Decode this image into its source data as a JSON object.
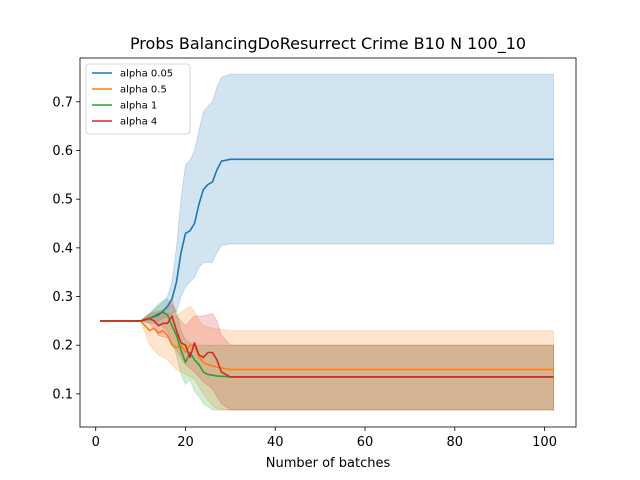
{
  "chart_data": {
    "type": "line",
    "title": "Probs BalancingDoResurrect Crime B10 N 100_10",
    "xlabel": "Number of batches",
    "ylabel": "",
    "xlim": [
      -3.5,
      107
    ],
    "ylim": [
      0.032,
      0.79
    ],
    "x_ticks": [
      0,
      20,
      40,
      60,
      80,
      100
    ],
    "y_ticks": [
      0.1,
      0.2,
      0.3,
      0.4,
      0.5,
      0.6,
      0.7
    ],
    "grid": false,
    "legend_position": "top-left",
    "series": [
      {
        "name": "alpha 0.05",
        "color": "#1f77b4",
        "points": [
          [
            1,
            0.25
          ],
          [
            10,
            0.25
          ],
          [
            12,
            0.255
          ],
          [
            14,
            0.262
          ],
          [
            15,
            0.27
          ],
          [
            16,
            0.28
          ],
          [
            17,
            0.295
          ],
          [
            18,
            0.33
          ],
          [
            19,
            0.39
          ],
          [
            20,
            0.43
          ],
          [
            21,
            0.435
          ],
          [
            22,
            0.45
          ],
          [
            23,
            0.49
          ],
          [
            24,
            0.52
          ],
          [
            25,
            0.53
          ],
          [
            26,
            0.535
          ],
          [
            27,
            0.56
          ],
          [
            28,
            0.578
          ],
          [
            30,
            0.582
          ],
          [
            102,
            0.582
          ]
        ],
        "band_upper": [
          [
            1,
            0.25
          ],
          [
            10,
            0.25
          ],
          [
            12,
            0.265
          ],
          [
            14,
            0.28
          ],
          [
            16,
            0.3
          ],
          [
            17,
            0.33
          ],
          [
            18,
            0.4
          ],
          [
            19,
            0.5
          ],
          [
            20,
            0.57
          ],
          [
            21,
            0.58
          ],
          [
            22,
            0.6
          ],
          [
            23,
            0.64
          ],
          [
            24,
            0.68
          ],
          [
            25,
            0.69
          ],
          [
            26,
            0.7
          ],
          [
            27,
            0.73
          ],
          [
            28,
            0.75
          ],
          [
            30,
            0.757
          ],
          [
            102,
            0.757
          ]
        ],
        "band_lower": [
          [
            1,
            0.25
          ],
          [
            10,
            0.25
          ],
          [
            12,
            0.25
          ],
          [
            14,
            0.25
          ],
          [
            16,
            0.26
          ],
          [
            17,
            0.265
          ],
          [
            18,
            0.27
          ],
          [
            19,
            0.3
          ],
          [
            20,
            0.32
          ],
          [
            21,
            0.33
          ],
          [
            22,
            0.34
          ],
          [
            23,
            0.36
          ],
          [
            24,
            0.37
          ],
          [
            25,
            0.37
          ],
          [
            26,
            0.37
          ],
          [
            27,
            0.39
          ],
          [
            28,
            0.405
          ],
          [
            30,
            0.408
          ],
          [
            102,
            0.408
          ]
        ]
      },
      {
        "name": "alpha 0.5",
        "color": "#ff7f0e",
        "points": [
          [
            1,
            0.25
          ],
          [
            10,
            0.25
          ],
          [
            11,
            0.24
          ],
          [
            12,
            0.23
          ],
          [
            13,
            0.235
          ],
          [
            14,
            0.225
          ],
          [
            15,
            0.23
          ],
          [
            16,
            0.22
          ],
          [
            17,
            0.2
          ],
          [
            18,
            0.195
          ],
          [
            19,
            0.2
          ],
          [
            20,
            0.185
          ],
          [
            21,
            0.2
          ],
          [
            22,
            0.2
          ],
          [
            23,
            0.175
          ],
          [
            24,
            0.165
          ],
          [
            25,
            0.16
          ],
          [
            27,
            0.155
          ],
          [
            30,
            0.15
          ],
          [
            102,
            0.15
          ]
        ],
        "band_upper": [
          [
            1,
            0.25
          ],
          [
            10,
            0.25
          ],
          [
            12,
            0.26
          ],
          [
            14,
            0.265
          ],
          [
            16,
            0.265
          ],
          [
            18,
            0.26
          ],
          [
            20,
            0.275
          ],
          [
            21,
            0.28
          ],
          [
            22,
            0.27
          ],
          [
            23,
            0.25
          ],
          [
            24,
            0.24
          ],
          [
            26,
            0.235
          ],
          [
            30,
            0.23
          ],
          [
            102,
            0.23
          ]
        ],
        "band_lower": [
          [
            1,
            0.25
          ],
          [
            10,
            0.25
          ],
          [
            12,
            0.2
          ],
          [
            14,
            0.18
          ],
          [
            16,
            0.17
          ],
          [
            18,
            0.15
          ],
          [
            20,
            0.14
          ],
          [
            22,
            0.13
          ],
          [
            24,
            0.1
          ],
          [
            26,
            0.075
          ],
          [
            28,
            0.067
          ],
          [
            30,
            0.067
          ],
          [
            102,
            0.067
          ]
        ]
      },
      {
        "name": "alpha 1",
        "color": "#2ca02c",
        "points": [
          [
            1,
            0.25
          ],
          [
            10,
            0.25
          ],
          [
            12,
            0.255
          ],
          [
            14,
            0.265
          ],
          [
            15,
            0.268
          ],
          [
            16,
            0.262
          ],
          [
            17,
            0.24
          ],
          [
            18,
            0.22
          ],
          [
            19,
            0.19
          ],
          [
            20,
            0.165
          ],
          [
            21,
            0.185
          ],
          [
            22,
            0.17
          ],
          [
            23,
            0.16
          ],
          [
            24,
            0.145
          ],
          [
            25,
            0.14
          ],
          [
            27,
            0.137
          ],
          [
            30,
            0.135
          ],
          [
            102,
            0.135
          ]
        ],
        "band_upper": [
          [
            1,
            0.25
          ],
          [
            10,
            0.25
          ],
          [
            12,
            0.265
          ],
          [
            14,
            0.285
          ],
          [
            16,
            0.295
          ],
          [
            18,
            0.27
          ],
          [
            19,
            0.23
          ],
          [
            20,
            0.21
          ],
          [
            22,
            0.2
          ],
          [
            24,
            0.2
          ],
          [
            26,
            0.2
          ],
          [
            102,
            0.2
          ]
        ],
        "band_lower": [
          [
            1,
            0.25
          ],
          [
            10,
            0.25
          ],
          [
            12,
            0.245
          ],
          [
            14,
            0.245
          ],
          [
            16,
            0.23
          ],
          [
            18,
            0.18
          ],
          [
            19,
            0.14
          ],
          [
            20,
            0.12
          ],
          [
            21,
            0.13
          ],
          [
            22,
            0.105
          ],
          [
            23,
            0.095
          ],
          [
            24,
            0.08
          ],
          [
            26,
            0.067
          ],
          [
            102,
            0.067
          ]
        ]
      },
      {
        "name": "alpha 4",
        "color": "#d62728",
        "points": [
          [
            1,
            0.25
          ],
          [
            10,
            0.25
          ],
          [
            12,
            0.255
          ],
          [
            13,
            0.25
          ],
          [
            14,
            0.24
          ],
          [
            15,
            0.245
          ],
          [
            16,
            0.245
          ],
          [
            17,
            0.26
          ],
          [
            18,
            0.23
          ],
          [
            19,
            0.205
          ],
          [
            20,
            0.2
          ],
          [
            21,
            0.175
          ],
          [
            22,
            0.205
          ],
          [
            23,
            0.18
          ],
          [
            24,
            0.175
          ],
          [
            25,
            0.185
          ],
          [
            26,
            0.185
          ],
          [
            27,
            0.17
          ],
          [
            28,
            0.145
          ],
          [
            30,
            0.135
          ],
          [
            102,
            0.135
          ]
        ],
        "band_upper": [
          [
            1,
            0.25
          ],
          [
            10,
            0.25
          ],
          [
            12,
            0.265
          ],
          [
            14,
            0.27
          ],
          [
            16,
            0.275
          ],
          [
            17,
            0.295
          ],
          [
            18,
            0.26
          ],
          [
            20,
            0.24
          ],
          [
            22,
            0.26
          ],
          [
            24,
            0.26
          ],
          [
            26,
            0.265
          ],
          [
            27,
            0.25
          ],
          [
            28,
            0.22
          ],
          [
            30,
            0.2
          ],
          [
            102,
            0.2
          ]
        ],
        "band_lower": [
          [
            1,
            0.25
          ],
          [
            10,
            0.25
          ],
          [
            12,
            0.245
          ],
          [
            14,
            0.22
          ],
          [
            16,
            0.215
          ],
          [
            18,
            0.19
          ],
          [
            20,
            0.16
          ],
          [
            22,
            0.145
          ],
          [
            24,
            0.125
          ],
          [
            26,
            0.11
          ],
          [
            28,
            0.08
          ],
          [
            30,
            0.067
          ],
          [
            102,
            0.067
          ]
        ]
      }
    ]
  }
}
